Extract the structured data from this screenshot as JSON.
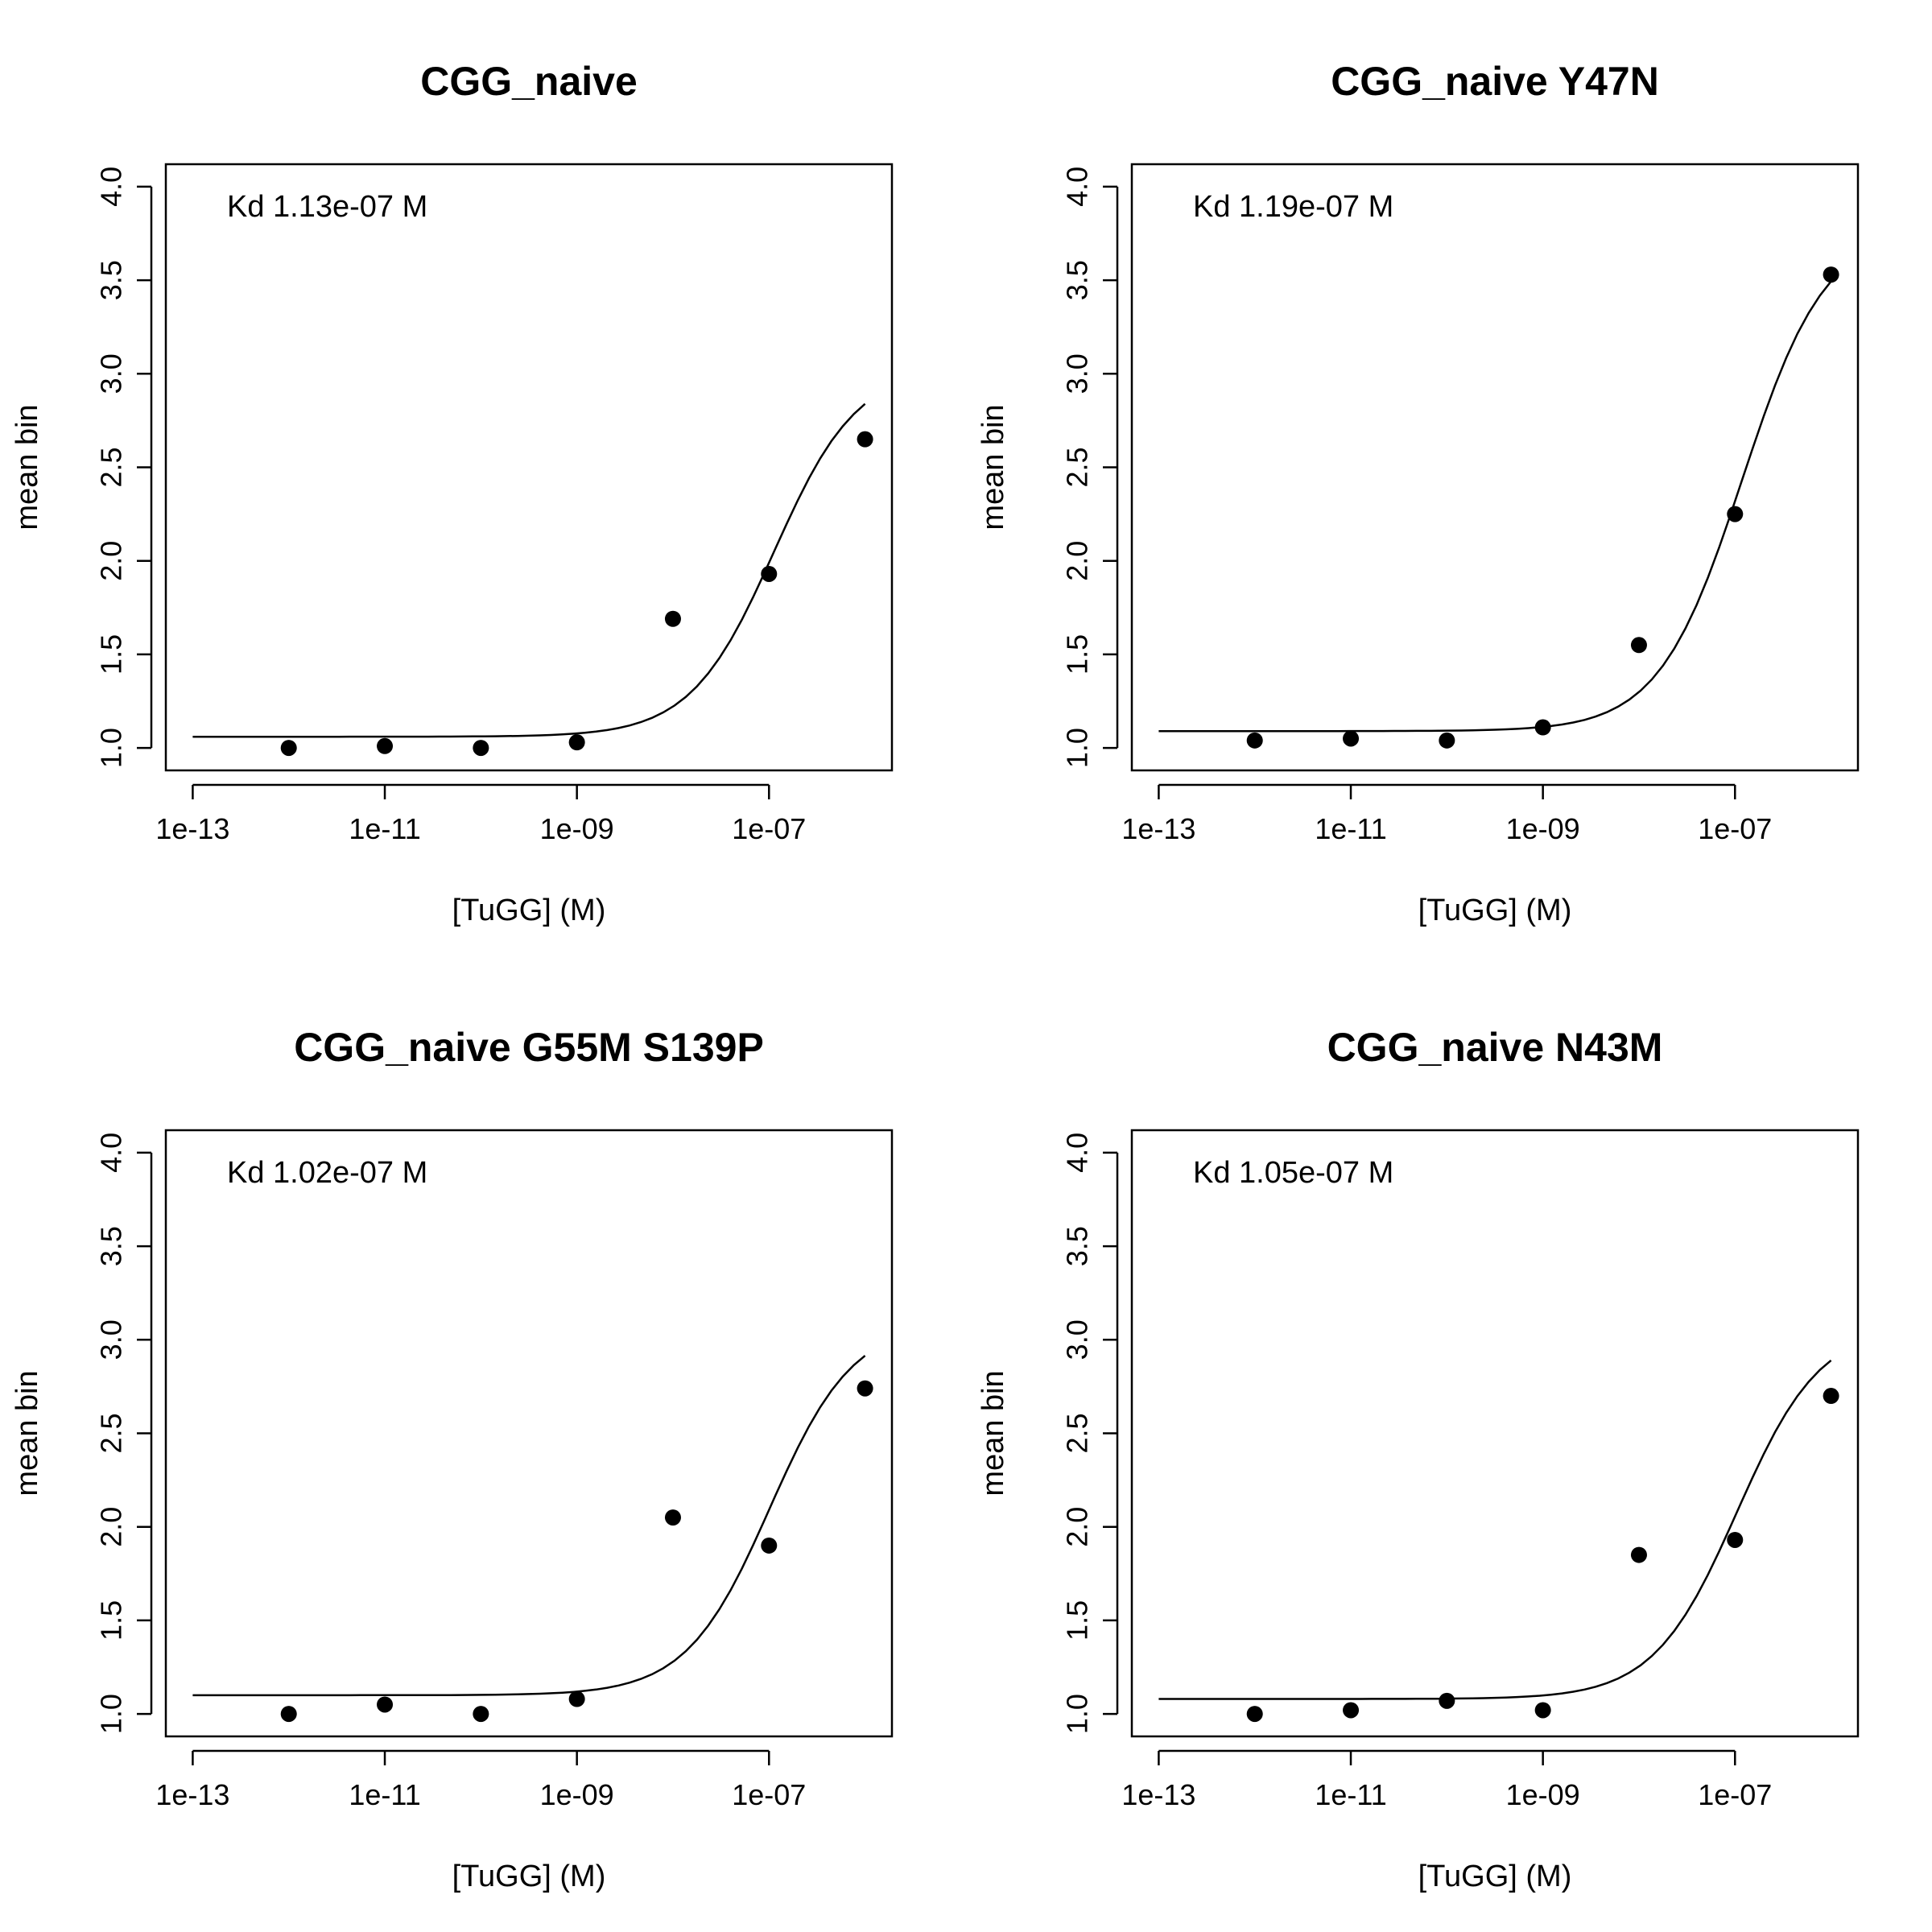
{
  "chart_data": [
    {
      "type": "scatter",
      "title": "CGG_naive",
      "xlabel": "[TuGG] (M)",
      "ylabel": "mean bin",
      "x_scale": "log10",
      "x_ticks": [
        1e-13,
        1e-11,
        1e-09,
        1e-07
      ],
      "x_tick_labels": [
        "1e-13",
        "1e-11",
        "1e-09",
        "1e-07"
      ],
      "y_ticks": [
        1.0,
        1.5,
        2.0,
        2.5,
        3.0,
        3.5,
        4.0
      ],
      "y_tick_labels": [
        "1.0",
        "1.5",
        "2.0",
        "2.5",
        "3.0",
        "3.5",
        "4.0"
      ],
      "ylim": [
        1.0,
        4.0
      ],
      "annotation": "Kd 1.13e-07 M",
      "kd": 1.13e-07,
      "points": {
        "x": [
          1e-12,
          1e-11,
          1e-10,
          1e-09,
          1e-08,
          1e-07,
          1e-06
        ],
        "y": [
          1.0,
          1.01,
          1.0,
          1.03,
          1.69,
          1.93,
          2.65
        ]
      },
      "fit": {
        "kind": "hill",
        "n": 1,
        "bottom": 1.06,
        "top": 3.04
      },
      "grid": false,
      "legend": "none"
    },
    {
      "type": "scatter",
      "title": "CGG_naive Y47N",
      "xlabel": "[TuGG] (M)",
      "ylabel": "mean bin",
      "x_scale": "log10",
      "x_ticks": [
        1e-13,
        1e-11,
        1e-09,
        1e-07
      ],
      "x_tick_labels": [
        "1e-13",
        "1e-11",
        "1e-09",
        "1e-07"
      ],
      "y_ticks": [
        1.0,
        1.5,
        2.0,
        2.5,
        3.0,
        3.5,
        4.0
      ],
      "y_tick_labels": [
        "1.0",
        "1.5",
        "2.0",
        "2.5",
        "3.0",
        "3.5",
        "4.0"
      ],
      "ylim": [
        1.0,
        4.0
      ],
      "annotation": "Kd 1.19e-07 M",
      "kd": 1.19e-07,
      "points": {
        "x": [
          1e-12,
          1e-11,
          1e-10,
          1e-09,
          1e-08,
          1e-07,
          1e-06
        ],
        "y": [
          1.04,
          1.05,
          1.04,
          1.11,
          1.55,
          2.25,
          3.53
        ]
      },
      "fit": {
        "kind": "hill",
        "n": 1,
        "bottom": 1.09,
        "top": 3.78
      },
      "grid": false,
      "legend": "none"
    },
    {
      "type": "scatter",
      "title": "CGG_naive G55M S139P",
      "xlabel": "[TuGG] (M)",
      "ylabel": "mean bin",
      "x_scale": "log10",
      "x_ticks": [
        1e-13,
        1e-11,
        1e-09,
        1e-07
      ],
      "x_tick_labels": [
        "1e-13",
        "1e-11",
        "1e-09",
        "1e-07"
      ],
      "y_ticks": [
        1.0,
        1.5,
        2.0,
        2.5,
        3.0,
        3.5,
        4.0
      ],
      "y_tick_labels": [
        "1.0",
        "1.5",
        "2.0",
        "2.5",
        "3.0",
        "3.5",
        "4.0"
      ],
      "ylim": [
        1.0,
        4.0
      ],
      "annotation": "Kd 1.02e-07 M",
      "kd": 1.02e-07,
      "points": {
        "x": [
          1e-12,
          1e-11,
          1e-10,
          1e-09,
          1e-08,
          1e-07,
          1e-06
        ],
        "y": [
          1.0,
          1.05,
          1.0,
          1.08,
          2.05,
          1.9,
          2.74
        ]
      },
      "fit": {
        "kind": "hill",
        "n": 1,
        "bottom": 1.1,
        "top": 3.1
      },
      "grid": false,
      "legend": "none"
    },
    {
      "type": "scatter",
      "title": "CGG_naive N43M",
      "xlabel": "[TuGG] (M)",
      "ylabel": "mean bin",
      "x_scale": "log10",
      "x_ticks": [
        1e-13,
        1e-11,
        1e-09,
        1e-07
      ],
      "x_tick_labels": [
        "1e-13",
        "1e-11",
        "1e-09",
        "1e-07"
      ],
      "y_ticks": [
        1.0,
        1.5,
        2.0,
        2.5,
        3.0,
        3.5,
        4.0
      ],
      "y_tick_labels": [
        "1.0",
        "1.5",
        "2.0",
        "2.5",
        "3.0",
        "3.5",
        "4.0"
      ],
      "ylim": [
        1.0,
        4.0
      ],
      "annotation": "Kd 1.05e-07 M",
      "kd": 1.05e-07,
      "points": {
        "x": [
          1e-12,
          1e-11,
          1e-10,
          1e-09,
          1e-08,
          1e-07,
          1e-06
        ],
        "y": [
          1.0,
          1.02,
          1.07,
          1.02,
          1.85,
          1.93,
          2.7
        ]
      },
      "fit": {
        "kind": "hill",
        "n": 1,
        "bottom": 1.08,
        "top": 3.08
      },
      "grid": false,
      "legend": "none"
    }
  ]
}
